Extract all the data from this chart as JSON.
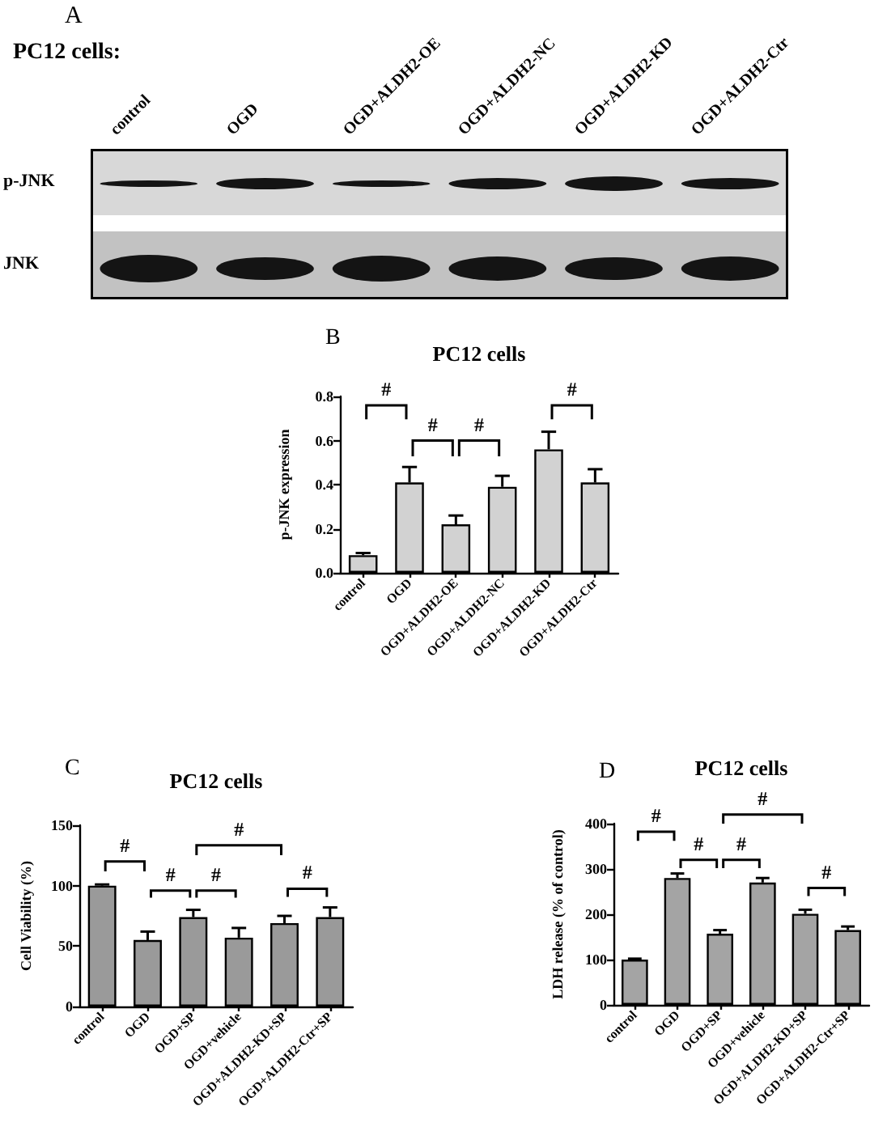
{
  "chart_data": [
    {
      "type": "other",
      "title": "PC12 cells:",
      "categories": [
        "control",
        "OGD",
        "OGD+ALDH2-OE",
        "OGD+ALDH2-NC",
        "OGD+ALDH2-KD",
        "OGD+ALDH2-Ctr"
      ],
      "annotations": [
        "A",
        "p-JNK",
        "JNK"
      ]
    },
    {
      "type": "bar",
      "title": "PC12 cells",
      "ylabel": "p-JNK expression",
      "categories": [
        "control",
        "OGD",
        "OGD+ALDH2-OE",
        "OGD+ALDH2-NC",
        "OGD+ALDH2-KD",
        "OGD+ALDH2-Ctr"
      ],
      "values": [
        0.08,
        0.41,
        0.22,
        0.39,
        0.56,
        0.41
      ],
      "errors": [
        [
          0.08,
          0.09
        ],
        [
          0.41,
          0.48
        ],
        [
          0.22,
          0.26
        ],
        [
          0.39,
          0.44
        ],
        [
          0.56,
          0.64
        ],
        [
          0.41,
          0.47
        ]
      ],
      "color": "#d2d2d2",
      "ylim": [
        0,
        0.8
      ],
      "yticks": [
        {
          "value": 0,
          "label": "0.0"
        },
        0.2,
        0.4,
        0.6,
        0.8
      ],
      "annotations": [
        "B",
        "#",
        "#",
        "#",
        "#"
      ]
    },
    {
      "type": "bar",
      "title": "PC12 cells",
      "ylabel": "Cell Viability (%)",
      "categories": [
        "control",
        "OGD",
        "OGD+SP",
        "OGD+vehicle",
        "OGD+ALDH2-KD+SP",
        "OGD+ALDH2-Ctr+SP"
      ],
      "values": [
        100,
        55,
        74,
        57,
        69,
        74
      ],
      "errors": [
        [
          100,
          101
        ],
        [
          55,
          62
        ],
        [
          74,
          80
        ],
        [
          57,
          65
        ],
        [
          69,
          75
        ],
        [
          74,
          82
        ]
      ],
      "color": "#9a9a9a",
      "ylim": [
        0,
        150
      ],
      "yticks": [
        0,
        50,
        100,
        150
      ],
      "annotations": [
        "C",
        "#",
        "#",
        "#",
        "#",
        "#"
      ]
    },
    {
      "type": "bar",
      "title": "PC12 cells",
      "ylabel": "LDH release (% of control)",
      "categories": [
        "control",
        "OGD",
        "OGD+SP",
        "OGD+vehicle",
        "OGD+ALDH2-KD+SP",
        "OGD+ALDH2-Ctr+SP"
      ],
      "values": [
        100,
        280,
        157,
        270,
        201,
        165
      ],
      "errors": [
        [
          100,
          102
        ],
        [
          280,
          290
        ],
        [
          157,
          165
        ],
        [
          270,
          280
        ],
        [
          201,
          210
        ],
        [
          165,
          173
        ]
      ],
      "color": "#a4a4a4",
      "ylim": [
        0,
        400
      ],
      "yticks": [
        0,
        100,
        200,
        300,
        400
      ],
      "annotations": [
        "D",
        "#",
        "#",
        "#",
        "#",
        "#"
      ]
    }
  ]
}
